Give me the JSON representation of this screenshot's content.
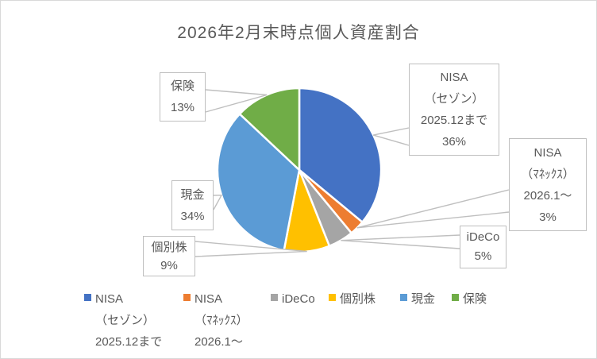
{
  "chart_data": {
    "type": "pie",
    "title": "2026年2月末時点個人資産割合",
    "legend_position": "bottom",
    "start_angle_deg": 0,
    "direction": "clockwise",
    "unit": "%",
    "slices": [
      {
        "name": "NISA（セゾン）2025.12まで",
        "value": 36,
        "pct": "36%",
        "color": "#4472C4",
        "callout_lines": [
          "NISA",
          "（セゾン）",
          "2025.12まで",
          "36%"
        ]
      },
      {
        "name": "NISA（ﾏﾈｯｸｽ）2026.1～",
        "value": 3,
        "pct": "3%",
        "color": "#ED7D31",
        "callout_lines": [
          "NISA",
          "（ﾏﾈｯｸｽ）",
          "2026.1～",
          "3%"
        ]
      },
      {
        "name": "iDeCo",
        "value": 5,
        "pct": "5%",
        "color": "#A5A5A5",
        "callout_lines": [
          "iDeCo",
          "5%"
        ]
      },
      {
        "name": "個別株",
        "value": 9,
        "pct": "9%",
        "color": "#FFC000",
        "callout_lines": [
          "個別株",
          "9%"
        ]
      },
      {
        "name": "現金",
        "value": 34,
        "pct": "34%",
        "color": "#5B9BD5",
        "callout_lines": [
          "現金",
          "34%"
        ]
      },
      {
        "name": "保険",
        "value": 13,
        "pct": "13%",
        "color": "#70AD47",
        "callout_lines": [
          "保険",
          "13%"
        ]
      }
    ]
  },
  "legend": {
    "items": [
      {
        "lines": [
          "NISA",
          "（セゾン）",
          "2025.12まで"
        ]
      },
      {
        "lines": [
          "NISA",
          "（ﾏﾈｯｸｽ）",
          "2026.1～"
        ]
      },
      {
        "lines": [
          "iDeCo"
        ]
      },
      {
        "lines": [
          "個別株"
        ]
      },
      {
        "lines": [
          "現金"
        ]
      },
      {
        "lines": [
          "保険"
        ]
      }
    ]
  },
  "colors": {
    "leader_line": "#BFBFBF",
    "text": "#595959",
    "slice_border": "#FFFFFF",
    "background": "#FFFFFF",
    "frame_border": "#D9D9D9"
  }
}
